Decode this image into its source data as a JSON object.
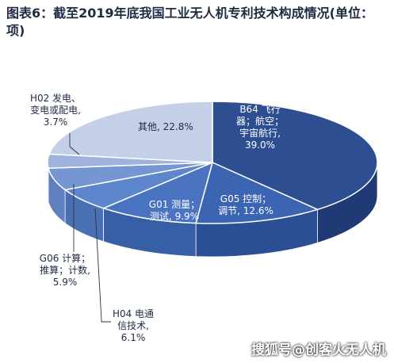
{
  "title": "图表6：截至2019年底我国工业无人机专利技术构成情况(单位：项)",
  "watermark": "搜狐号@创客火无人机",
  "colors": {
    "top": [
      "#2d4e91",
      "#3b64b3",
      "#4a74c1",
      "#5d86cc",
      "#7596d2",
      "#9fb2dd",
      "#c4cfe8"
    ],
    "side": [
      "#1f3a75",
      "#2b4f95",
      "#375fa6",
      "#4970b5",
      "#5f80bf",
      "#8396c9",
      "#a7b5d9"
    ]
  },
  "chart_data": {
    "type": "pie",
    "title": "图表6：截至2019年底我国工业无人机专利技术构成情况(单位：项)",
    "slices": [
      {
        "name": "B64 飞行器；航空；宇宙航行",
        "value": 39.0,
        "label_lines": [
          "B64 飞行",
          "器；航空；",
          "宇宙航行,",
          "39.0%"
        ]
      },
      {
        "name": "G05 控制；调节",
        "value": 12.6,
        "label_lines": [
          "G05 控制；",
          "调节, 12.6%"
        ]
      },
      {
        "name": "G01 测量；测试",
        "value": 9.9,
        "label_lines": [
          "G01 测量；",
          "测试, 9.9%"
        ]
      },
      {
        "name": "H04 电通信技术",
        "value": 6.1,
        "label_lines": [
          "H04 电通",
          "信技术,",
          "6.1%"
        ]
      },
      {
        "name": "G06 计算；推算；计数",
        "value": 5.9,
        "label_lines": [
          "G06 计算；",
          "推算；计数,",
          "5.9%"
        ]
      },
      {
        "name": "H02 发电、变电或配电",
        "value": 3.7,
        "label_lines": [
          "H02 发电、",
          "变电或配电,",
          "3.7%"
        ]
      },
      {
        "name": "其他",
        "value": 22.8,
        "label_lines": [
          "其他, 22.8%"
        ]
      }
    ]
  }
}
